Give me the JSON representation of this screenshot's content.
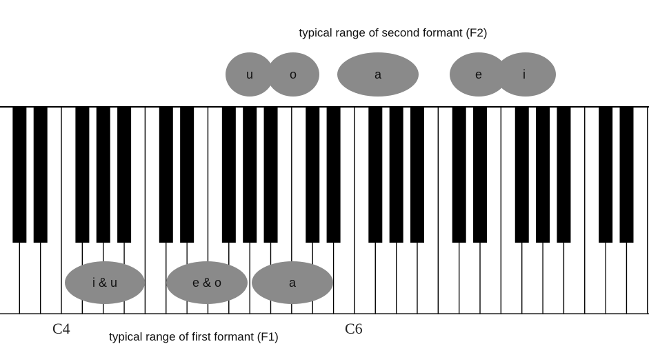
{
  "f2_caption": "typical range of second formant (F2)",
  "f1_caption": "typical range of first formant (F1)",
  "note_labels": [
    {
      "id": "c4",
      "text": "C4"
    },
    {
      "id": "c6",
      "text": "C6"
    }
  ],
  "f2_vowels": [
    "u",
    "o",
    "a",
    "e",
    "i"
  ],
  "f1_vowels": [
    "i & u",
    "e & o",
    "a"
  ],
  "colors": {
    "ellipse": "#8a8a8a",
    "white_key": "#ffffff",
    "black_key": "#000000",
    "key_border": "#000000"
  }
}
